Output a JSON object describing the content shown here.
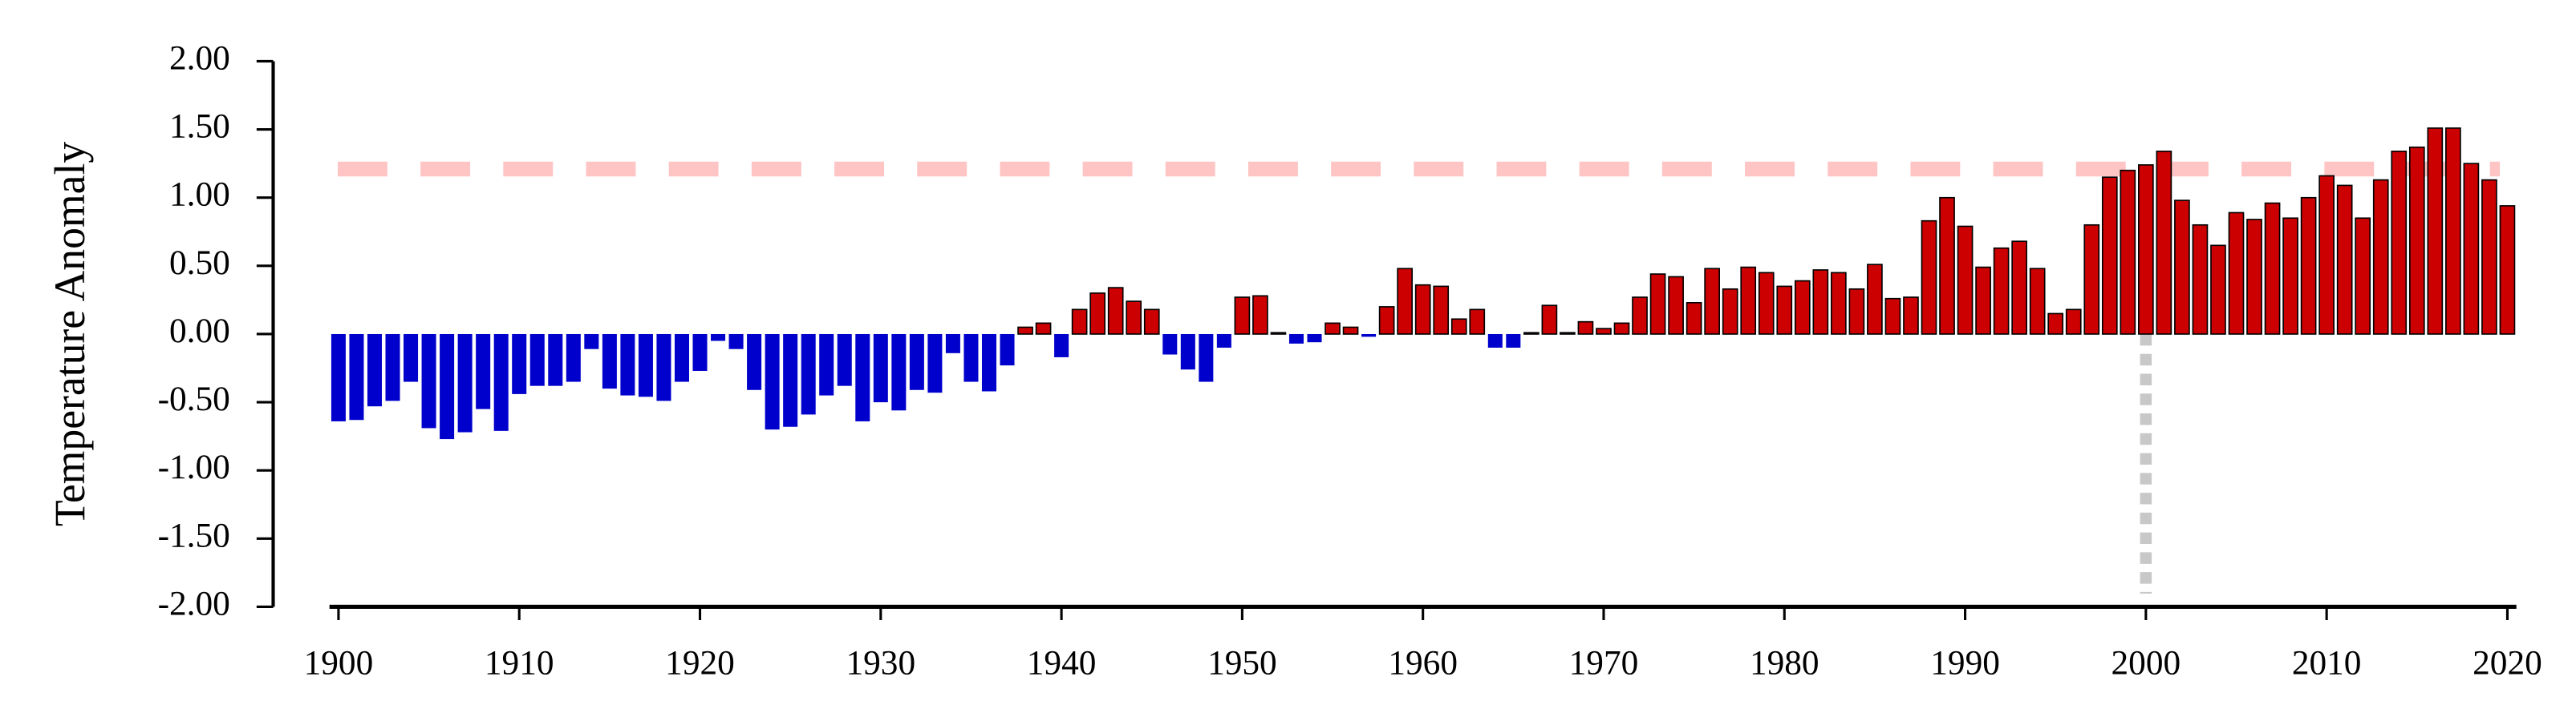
{
  "chart_data": {
    "type": "bar",
    "y_label": "Temperature Anomaly",
    "x": [
      1900,
      1901,
      1902,
      1903,
      1904,
      1905,
      1906,
      1907,
      1908,
      1909,
      1910,
      1911,
      1912,
      1913,
      1914,
      1915,
      1916,
      1917,
      1918,
      1919,
      1920,
      1921,
      1922,
      1923,
      1924,
      1925,
      1926,
      1927,
      1928,
      1929,
      1930,
      1931,
      1932,
      1933,
      1934,
      1935,
      1936,
      1937,
      1938,
      1939,
      1940,
      1941,
      1942,
      1943,
      1944,
      1945,
      1946,
      1947,
      1948,
      1949,
      1950,
      1951,
      1952,
      1953,
      1954,
      1955,
      1956,
      1957,
      1958,
      1959,
      1960,
      1961,
      1962,
      1963,
      1964,
      1965,
      1966,
      1967,
      1968,
      1969,
      1970,
      1971,
      1972,
      1973,
      1974,
      1975,
      1976,
      1977,
      1978,
      1979,
      1980,
      1981,
      1982,
      1983,
      1984,
      1985,
      1986,
      1987,
      1988,
      1989,
      1990,
      1991,
      1992,
      1993,
      1994,
      1995,
      1996,
      1997,
      1998,
      1999,
      2000,
      2001,
      2002,
      2003,
      2004,
      2005,
      2006,
      2007,
      2008,
      2009,
      2010,
      2011,
      2012,
      2013,
      2014,
      2015,
      2016,
      2017,
      2018,
      2019,
      2020
    ],
    "values": [
      -0.64,
      -0.63,
      -0.53,
      -0.49,
      -0.35,
      -0.69,
      -0.77,
      -0.72,
      -0.55,
      -0.71,
      -0.44,
      -0.38,
      -0.38,
      -0.35,
      -0.11,
      -0.4,
      -0.45,
      -0.46,
      -0.49,
      -0.35,
      -0.27,
      -0.05,
      -0.11,
      -0.41,
      -0.7,
      -0.68,
      -0.59,
      -0.45,
      -0.38,
      -0.64,
      -0.5,
      -0.56,
      -0.41,
      -0.43,
      -0.14,
      -0.35,
      -0.42,
      -0.23,
      0.05,
      0.08,
      -0.17,
      0.18,
      0.3,
      0.34,
      0.24,
      0.18,
      -0.15,
      -0.26,
      -0.35,
      -0.1,
      0.27,
      0.28,
      0.01,
      -0.07,
      -0.06,
      0.08,
      0.05,
      -0.02,
      0.2,
      0.48,
      0.36,
      0.35,
      0.11,
      0.18,
      -0.1,
      -0.1,
      0.01,
      0.21,
      0.01,
      0.09,
      0.04,
      0.08,
      0.27,
      0.44,
      0.42,
      0.23,
      0.48,
      0.33,
      0.49,
      0.45,
      0.35,
      0.39,
      0.47,
      0.45,
      0.33,
      0.51,
      0.26,
      0.27,
      0.83,
      1.0,
      0.79,
      0.49,
      0.63,
      0.68,
      0.48,
      0.15,
      0.18,
      0.8,
      1.15,
      1.2,
      1.24,
      1.34,
      0.98,
      0.8,
      0.65,
      0.89,
      0.84,
      0.96,
      0.85,
      1.0,
      1.16,
      1.09,
      0.85,
      1.13,
      1.34,
      1.37,
      1.51,
      1.51,
      1.25,
      1.13,
      0.94
    ],
    "positive_color": "#cc0000",
    "negative_color": "#0000cc",
    "xlim": [
      1899.5,
      2020.5
    ],
    "xticks": [
      1900,
      1910,
      1920,
      1930,
      1940,
      1950,
      1960,
      1970,
      1980,
      1990,
      2000,
      2010,
      2020
    ],
    "ylim": [
      -2,
      2
    ],
    "yticks": [
      {
        "value": -2,
        "label": "-2.00"
      },
      {
        "value": -1.5,
        "label": "-1.50"
      },
      {
        "value": -1,
        "label": "-1.00"
      },
      {
        "value": -0.5,
        "label": "-0.50"
      },
      {
        "value": 0,
        "label": "0.00"
      },
      {
        "value": 0.5,
        "label": "0.50"
      },
      {
        "value": 1,
        "label": "1.00"
      },
      {
        "value": 1.5,
        "label": "1.50"
      },
      {
        "value": 2,
        "label": "2.00"
      }
    ],
    "reference_line_y": 1.21,
    "reference_line_color": "#ffc4c4",
    "marker_line_x": 2000,
    "marker_line_color": "#c8c8c8"
  }
}
